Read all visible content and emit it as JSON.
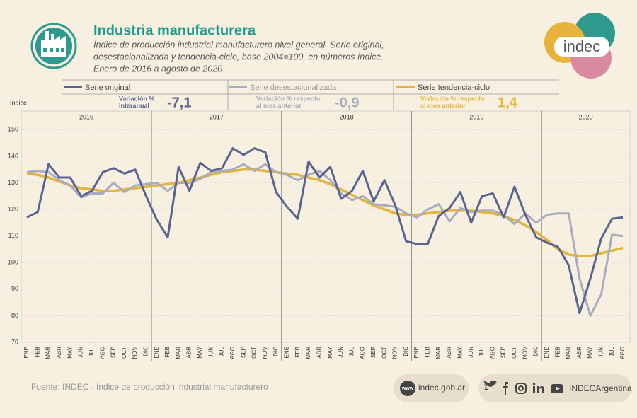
{
  "chart_data": {
    "type": "line",
    "title": "Industria manufacturera",
    "subtitle": [
      "Índice de producción industrial manufacturero nivel general. Serie original,",
      "desestacionalizada y tendencia-ciclo, base 2004=100, en números índice.",
      "Enero de 2016 a agosto de 2020"
    ],
    "y_label": "Índice",
    "years": [
      "2016",
      "2017",
      "2018",
      "2019",
      "2020"
    ],
    "categories": [
      "ENE",
      "FEB",
      "MAR",
      "ABR",
      "MAY",
      "JUN",
      "JUL",
      "AGO",
      "SEP",
      "OCT",
      "NOV",
      "DIC",
      "ENE",
      "FEB",
      "MAR",
      "ABR",
      "MAY",
      "JUN",
      "JUL",
      "AGO",
      "SEP",
      "OCT",
      "NOV",
      "DIC",
      "ENE",
      "FEB",
      "MAR",
      "ABR",
      "MAY",
      "JUN",
      "JUL",
      "AGO",
      "SEP",
      "OCT",
      "NOV",
      "DIC",
      "ENE",
      "FEB",
      "MAR",
      "ABR",
      "MAY",
      "JUN",
      "JUL",
      "AGO",
      "SEP",
      "OCT",
      "NOV",
      "DIC",
      "ENE",
      "FEB",
      "MAR",
      "ABR",
      "MAY",
      "JUN",
      "JUL",
      "AGO"
    ],
    "ylim": [
      70,
      157
    ],
    "yticks": [
      70,
      80,
      90,
      100,
      110,
      120,
      130,
      140,
      150
    ],
    "grid": true,
    "series": [
      {
        "name": "Serie original",
        "color": "#5a6491",
        "stat_label": [
          "Variación %",
          "interanual"
        ],
        "stat": "-7,1",
        "values": [
          117,
          119,
          137,
          132,
          132,
          125,
          127,
          134,
          135.5,
          133.5,
          135,
          125,
          116,
          109.5,
          136,
          127,
          137.5,
          134.5,
          135.5,
          143,
          140.5,
          143,
          141.5,
          126.5,
          121,
          116.5,
          138,
          132,
          136,
          124,
          127,
          134.5,
          123,
          131,
          121.5,
          108,
          107,
          107,
          117.5,
          120.5,
          126.5,
          115,
          125,
          126,
          117,
          128.5,
          118,
          109.5,
          107.5,
          106,
          99,
          81,
          94,
          109,
          116.5,
          117
        ]
      },
      {
        "name": "Serie desestacionalizada",
        "color": "#a9abbf",
        "stat_label": [
          "Variación % respecto",
          "al mes anterior"
        ],
        "stat": "-0,9",
        "values": [
          134,
          134.5,
          134,
          131,
          129,
          124.5,
          126,
          126,
          130,
          126.5,
          129,
          129.5,
          130,
          127,
          130,
          130,
          131.5,
          134,
          134.5,
          135,
          137,
          134.5,
          137,
          134,
          133,
          131,
          133,
          134.5,
          131,
          126,
          123.5,
          125,
          122,
          121.5,
          121,
          118.5,
          117,
          120,
          122,
          115.5,
          120.5,
          119,
          119.5,
          119.5,
          118,
          114.5,
          118.5,
          115,
          118,
          118.5,
          118.5,
          94,
          80,
          88,
          110.5,
          110
        ]
      },
      {
        "name": "Serie tendencia-ciclo",
        "color": "#e3b53a",
        "stat_label": [
          "Variación % respecto",
          "al mes anterior"
        ],
        "stat": "1,4",
        "values": [
          133.5,
          133,
          132,
          130.5,
          129,
          128,
          127.5,
          127,
          127,
          127.5,
          128,
          128.5,
          129,
          129.5,
          130,
          131,
          132,
          133,
          134,
          134.5,
          135,
          135,
          134.5,
          134,
          133.5,
          133,
          132,
          131,
          129.5,
          127.5,
          125.5,
          123.5,
          121.5,
          120,
          118.5,
          118,
          118,
          118.5,
          119,
          119.5,
          119.5,
          119.5,
          119,
          118.5,
          117.5,
          116,
          114,
          111.5,
          108.5,
          105,
          103,
          102.5,
          102.5,
          103.5,
          104.5,
          105.5
        ]
      }
    ]
  },
  "logo": "indec",
  "footer": {
    "source": "Fuente: INDEC - Índice de producción industrial manufacturero",
    "www": "www",
    "site": "indec.gob.ar",
    "social": "INDECArgentina"
  }
}
